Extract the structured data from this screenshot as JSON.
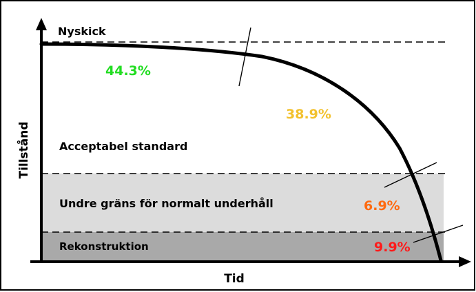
{
  "axes": {
    "y_label": "Tillstånd",
    "x_label": "Tid"
  },
  "levels": {
    "top": "Nyskick",
    "acceptable": "Acceptabel standard",
    "lower_limit": "Undre gräns för normalt underhåll",
    "reconstruction": "Rekonstruktion"
  },
  "segments": [
    {
      "value": "44.3%",
      "color": "#22dd22"
    },
    {
      "value": "38.9%",
      "color": "#f2c12e"
    },
    {
      "value": "6.9%",
      "color": "#ff6a10"
    },
    {
      "value": "9.9%",
      "color": "#ff1a1a"
    }
  ],
  "colors": {
    "band_lower": "#dcdcdc",
    "band_reconstruction": "#a9a9a9",
    "curve": "#000000"
  }
}
